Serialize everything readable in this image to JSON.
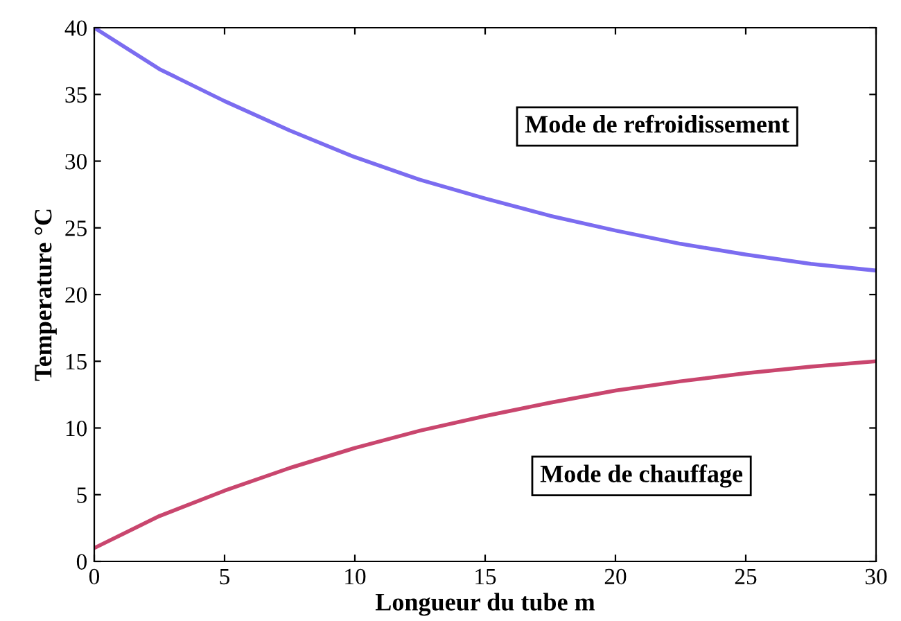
{
  "chart_data": {
    "type": "line",
    "xlabel": "Longueur du tube m",
    "ylabel": "Temperature °C",
    "x": [
      0,
      2.5,
      5,
      7.5,
      10,
      12.5,
      15,
      17.5,
      20,
      22.5,
      25,
      27.5,
      30
    ],
    "series": [
      {
        "color": "#7b6cf0",
        "values": [
          40,
          36.9,
          34.5,
          32.3,
          30.3,
          28.6,
          27.2,
          25.9,
          24.8,
          23.8,
          23.0,
          22.3,
          21.8
        ]
      },
      {
        "color": "#c9466e",
        "values": [
          1,
          3.4,
          5.3,
          7.0,
          8.5,
          9.8,
          10.9,
          11.9,
          12.8,
          13.5,
          14.1,
          14.6,
          15.0
        ]
      }
    ],
    "annotations": [
      "Mode de refroidissement",
      "Mode de chauffage"
    ],
    "xlim": [
      0,
      30
    ],
    "xticks": [
      0,
      5,
      10,
      15,
      20,
      25,
      30
    ],
    "ylim": [
      0,
      40
    ],
    "yticks": [
      0,
      5,
      10,
      15,
      20,
      25,
      30,
      35,
      40
    ],
    "grid": false,
    "marker": "none",
    "line_style": "solid"
  }
}
